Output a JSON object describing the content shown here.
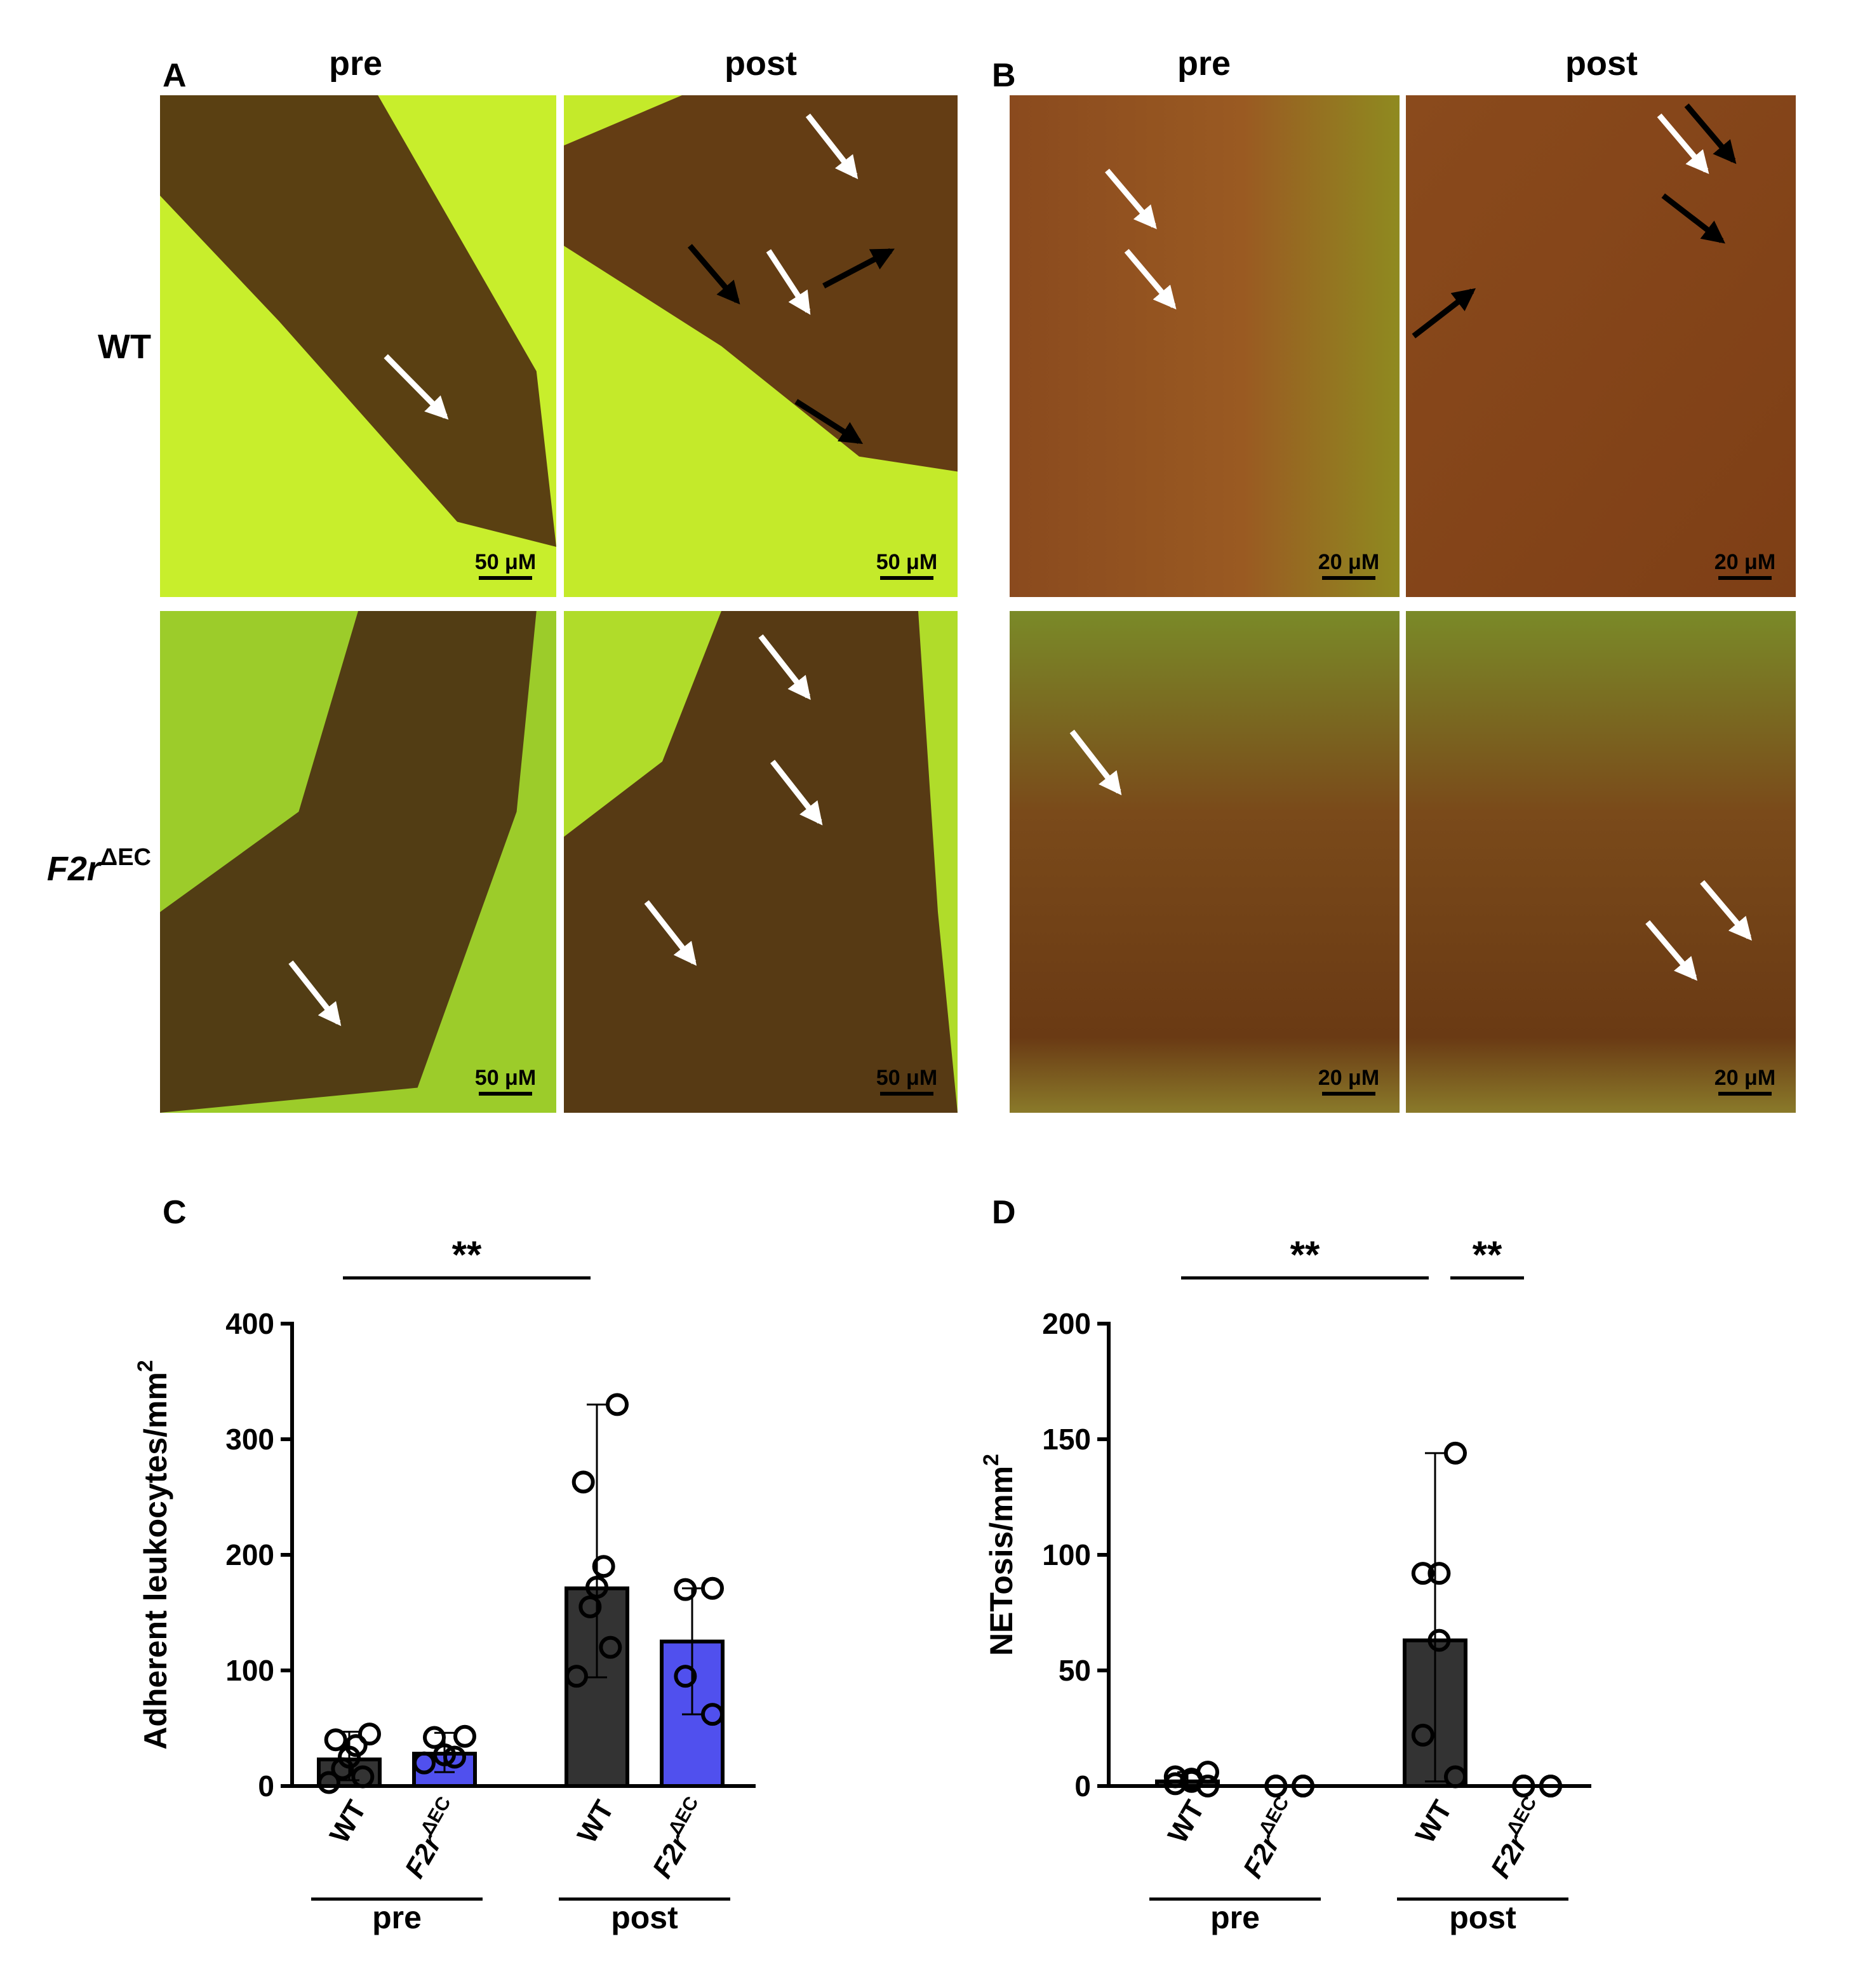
{
  "figure": {
    "panel_a": {
      "label": "A",
      "columns": [
        "pre",
        "post"
      ],
      "rows": [
        {
          "label": "WT"
        },
        {
          "label": "F2r",
          "sup": "ΔEC"
        }
      ],
      "scale_bars": [
        [
          "50 μM",
          "50 μM"
        ],
        [
          "50 μM",
          "50 μM"
        ]
      ]
    },
    "panel_b": {
      "label": "B",
      "columns": [
        "pre",
        "post"
      ],
      "scale_bars": [
        [
          "20 μM",
          "20 μM"
        ],
        [
          "20 μM",
          "20 μM"
        ]
      ]
    }
  },
  "chart_data": [
    {
      "type": "bar",
      "panel_label": "C",
      "ylabel": "Adherent leukocytes/mm",
      "ylabel_sup": "2",
      "categories": [
        "WT",
        "F2r",
        "WT",
        "F2r"
      ],
      "category_superscripts": [
        null,
        "ΔEC",
        null,
        "ΔEC"
      ],
      "groups": [
        {
          "label": "pre",
          "categories": [
            0,
            1
          ]
        },
        {
          "label": "post",
          "categories": [
            2,
            3
          ]
        }
      ],
      "values": [
        23,
        28,
        171,
        125
      ],
      "colors": [
        "#333333",
        "#5050ee",
        "#333333",
        "#5050ee"
      ],
      "error_ranges": [
        [
          5,
          47
        ],
        [
          12,
          46
        ],
        [
          94,
          330
        ],
        [
          62,
          171
        ]
      ],
      "points": [
        [
          45,
          40,
          35,
          25,
          15,
          8,
          3
        ],
        [
          43,
          42,
          27,
          25,
          20
        ],
        [
          330,
          263,
          190,
          172,
          155,
          120,
          95
        ],
        [
          171,
          170,
          95,
          62
        ]
      ],
      "ylim": [
        0,
        400
      ],
      "yticks": [
        0,
        100,
        200,
        300,
        400
      ],
      "significance": [
        {
          "label": "**",
          "between": [
            0,
            2
          ]
        }
      ]
    },
    {
      "type": "bar",
      "panel_label": "D",
      "ylabel": "NETosis/mm",
      "ylabel_sup": "2",
      "categories": [
        "WT",
        "F2r",
        "WT",
        "F2r"
      ],
      "category_superscripts": [
        null,
        "ΔEC",
        null,
        "ΔEC"
      ],
      "groups": [
        {
          "label": "pre",
          "categories": [
            0,
            1
          ]
        },
        {
          "label": "post",
          "categories": [
            2,
            3
          ]
        }
      ],
      "values": [
        2,
        0,
        63,
        0
      ],
      "colors": [
        "#333333",
        "#333333",
        "#333333",
        "#333333"
      ],
      "error_ranges": [
        [
          0,
          6
        ],
        [
          0,
          0
        ],
        [
          2,
          144
        ],
        [
          0,
          0
        ]
      ],
      "points": [
        [
          6,
          4,
          3,
          2,
          1,
          0
        ],
        [
          0,
          0,
          0,
          0
        ],
        [
          144,
          92,
          92,
          63,
          22,
          4
        ],
        [
          0,
          0,
          0,
          0
        ]
      ],
      "ylim": [
        0,
        200
      ],
      "yticks": [
        0,
        50,
        100,
        150,
        200
      ],
      "significance": [
        {
          "label": "**",
          "between": [
            0,
            2
          ]
        },
        {
          "label": "**",
          "between": [
            2,
            3
          ]
        }
      ]
    }
  ]
}
